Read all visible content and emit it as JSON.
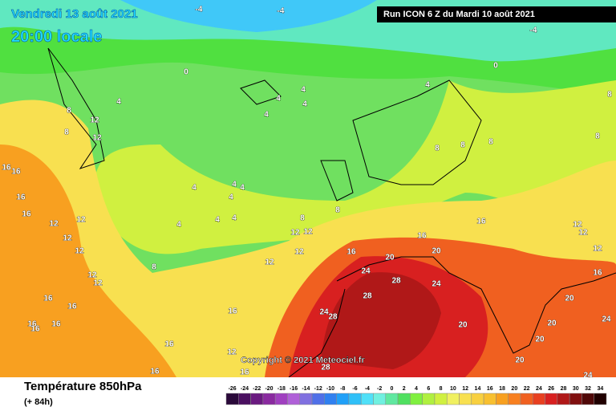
{
  "header": {
    "date": "Vendredi 13 août 2021",
    "time": "20:00 locale",
    "run": "Run ICON 6 Z du Mardi 10 août 2021"
  },
  "copyright": "Copyright © 2021 Meteociel.fr",
  "footer": {
    "title": "Température 850hPa",
    "subtitle": "(+ 84h)"
  },
  "legend": {
    "ticks": [
      -26,
      -24,
      -22,
      -20,
      -18,
      -16,
      -14,
      -12,
      -10,
      -8,
      -6,
      -4,
      -2,
      0,
      2,
      4,
      6,
      8,
      10,
      12,
      14,
      16,
      18,
      20,
      22,
      24,
      26,
      28,
      30,
      32,
      34
    ],
    "colors": [
      "#2a0a3a",
      "#4a1060",
      "#6a1a80",
      "#8a2aa0",
      "#a040c0",
      "#b060d8",
      "#8070e0",
      "#5070e8",
      "#3080f0",
      "#20a0f8",
      "#30c0f8",
      "#50e0f8",
      "#70f0e0",
      "#60e8a0",
      "#50e060",
      "#80f040",
      "#b0f040",
      "#d0f040",
      "#f0f060",
      "#f8e050",
      "#f8d040",
      "#f8c030",
      "#f8a020",
      "#f88020",
      "#f06020",
      "#e84020",
      "#d82020",
      "#b01818",
      "#801010",
      "#500808",
      "#200000"
    ]
  },
  "contour_labels": [
    -4,
    -4,
    -4,
    0,
    0,
    4,
    4,
    4,
    4,
    4,
    4,
    8,
    8,
    12,
    12,
    8,
    8,
    8,
    8,
    8,
    16,
    16,
    16,
    16,
    12,
    12,
    12,
    12,
    4,
    4,
    4,
    4,
    4,
    4,
    4,
    8,
    8,
    12,
    12,
    16,
    16,
    12,
    12,
    12,
    16,
    16,
    20,
    20,
    12,
    12,
    8,
    24,
    28,
    24,
    16,
    16,
    12,
    12,
    28,
    24,
    28,
    16,
    20,
    24,
    20,
    16,
    12,
    20,
    20,
    16,
    16,
    28,
    24,
    20,
    16,
    16,
    16
  ]
}
